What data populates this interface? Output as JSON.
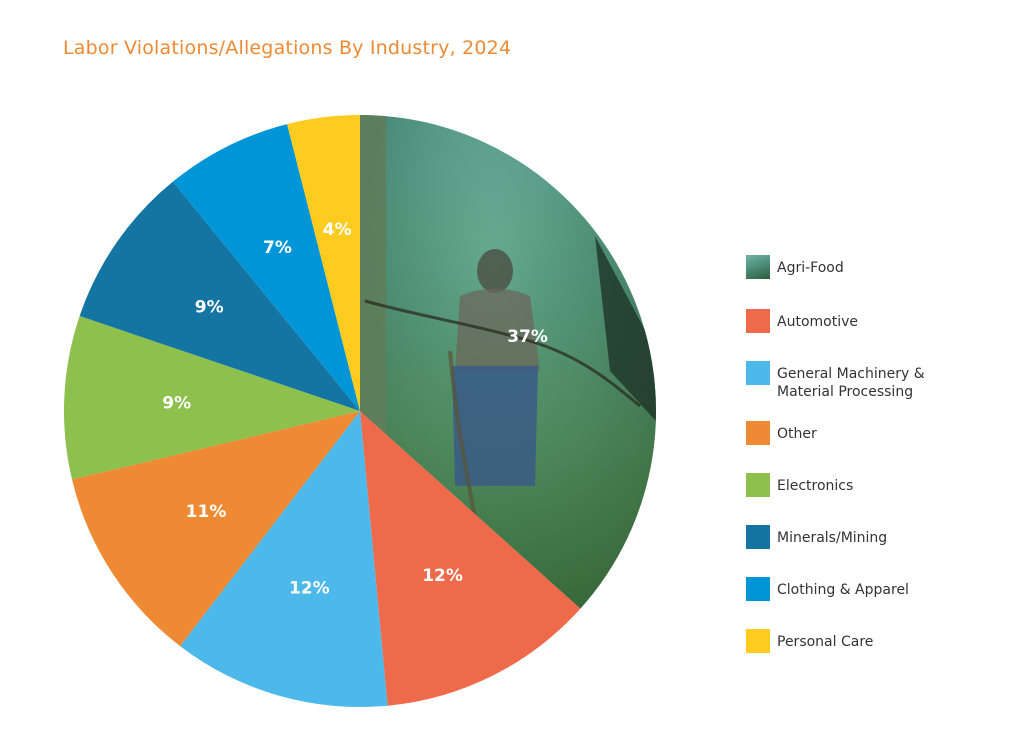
{
  "chart_data": {
    "type": "pie",
    "title": "Labor Violations/Allegations By Industry, 2024",
    "start_angle_deg": 0,
    "direction": "clockwise",
    "slices": [
      {
        "name": "Agri-Food",
        "value": 37,
        "label": "37%",
        "color": "#4E8F7C",
        "fill": "photo"
      },
      {
        "name": "Automotive",
        "value": 12,
        "label": "12%",
        "color": "#EE6A4A"
      },
      {
        "name": "General Machinery & Material Processing",
        "value": 12,
        "label": "12%",
        "color": "#4DB8EA"
      },
      {
        "name": "Other",
        "value": 11,
        "label": "11%",
        "color": "#EE8A33"
      },
      {
        "name": "Electronics",
        "value": 9,
        "label": "9%",
        "color": "#8DC04D"
      },
      {
        "name": "Minerals/Mining",
        "value": 9,
        "label": "9%",
        "color": "#1475A3"
      },
      {
        "name": "Clothing & Apparel",
        "value": 7,
        "label": "7%",
        "color": "#0095D6"
      },
      {
        "name": "Personal Care",
        "value": 4,
        "label": "4%",
        "color": "#FFCB1F"
      }
    ],
    "legend": {
      "placement": "right",
      "entries": [
        "Agri-Food",
        "Automotive",
        "General Machinery &\nMaterial Processing",
        "Other",
        "Electronics",
        "Minerals/Mining",
        "Clothing & Apparel",
        "Personal Care"
      ]
    }
  }
}
